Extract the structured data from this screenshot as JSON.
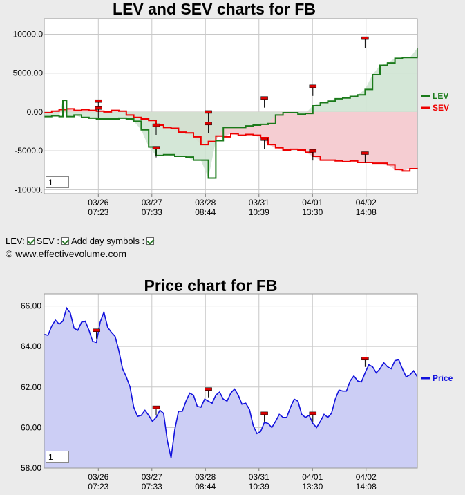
{
  "top_chart_title": "LEV and SEV charts for FB",
  "price_chart_title": "Price chart for FB",
  "controls": {
    "lev_label": "LEV:",
    "sev_label": "SEV :",
    "day_symbols_label": "Add day symbols :"
  },
  "credit": "© www.effectivevolume.com",
  "zoom_value_top": "1",
  "zoom_value_bottom": "1",
  "colors": {
    "lev": "#1a7a1a",
    "lev_fill": "#cde3d0",
    "sev": "#ee0000",
    "sev_fill": "#f5cdd2",
    "overlap_fill": "#c9b7ad",
    "price": "#1111dd",
    "price_fill": "#cccef5",
    "marker": "#dd0000"
  },
  "chart_data": [
    {
      "type": "line",
      "title": "LEV and SEV charts for FB",
      "ytick_labels": [
        "10000.0",
        "5000.00",
        "0.00",
        "-5000.0",
        "-10000."
      ],
      "ylim": [
        -10500,
        12000
      ],
      "x_labels": [
        {
          "date": "03/26",
          "time": "07:23"
        },
        {
          "date": "03/27",
          "time": "07:33"
        },
        {
          "date": "03/28",
          "time": "08:44"
        },
        {
          "date": "03/31",
          "time": "10:39"
        },
        {
          "date": "04/01",
          "time": "13:30"
        },
        {
          "date": "04/02",
          "time": "14:08"
        }
      ],
      "grid": true,
      "legend_position": "right",
      "series": [
        {
          "name": "LEV",
          "x": [
            0,
            2,
            4,
            5,
            6,
            8,
            10,
            12,
            14,
            16,
            18,
            20,
            22,
            24,
            26,
            28,
            30,
            32,
            35,
            38,
            40,
            42,
            44,
            46,
            48,
            50,
            52,
            54,
            56,
            58,
            60,
            62,
            64,
            66,
            68,
            70,
            72,
            74,
            76,
            78,
            80,
            82,
            84,
            86,
            88,
            90,
            92,
            94,
            96,
            98,
            100
          ],
          "values": [
            -600,
            -500,
            -600,
            1500,
            -600,
            -400,
            -700,
            -800,
            -900,
            -900,
            -900,
            -800,
            -900,
            -1200,
            -2300,
            -4500,
            -5600,
            -5500,
            -5700,
            -5800,
            -6200,
            -6200,
            -8500,
            -3700,
            -2000,
            -2000,
            -2000,
            -1800,
            -1700,
            -1600,
            -1500,
            -400,
            -100,
            -100,
            -300,
            -200,
            800,
            1200,
            1400,
            1700,
            1800,
            2000,
            2200,
            2900,
            4800,
            6000,
            6300,
            6900,
            7000,
            7000,
            8200
          ]
        },
        {
          "name": "SEV",
          "x": [
            0,
            2,
            4,
            6,
            8,
            10,
            12,
            14,
            16,
            18,
            20,
            22,
            24,
            26,
            28,
            30,
            32,
            34,
            36,
            38,
            40,
            42,
            44,
            46,
            48,
            50,
            52,
            54,
            56,
            58,
            60,
            62,
            64,
            66,
            68,
            70,
            72,
            74,
            76,
            78,
            80,
            82,
            84,
            86,
            88,
            90,
            92,
            94,
            96,
            98,
            100
          ],
          "values": [
            -100,
            100,
            300,
            400,
            200,
            300,
            200,
            100,
            0,
            200,
            100,
            -400,
            -700,
            -900,
            -1100,
            -1700,
            -2000,
            -2100,
            -2600,
            -2700,
            -3200,
            -4200,
            -3800,
            -3100,
            -3200,
            -2800,
            -3000,
            -2900,
            -3000,
            -3300,
            -4200,
            -4600,
            -4900,
            -4800,
            -4900,
            -5200,
            -5700,
            -6200,
            -6200,
            -6300,
            -6400,
            -6300,
            -6500,
            -6500,
            -6600,
            -6600,
            -6800,
            -7400,
            -7600,
            -7300,
            -7200
          ]
        }
      ]
    },
    {
      "type": "area",
      "title": "Price chart for FB",
      "ytick_labels": [
        "66.00",
        "64.00",
        "62.00",
        "60.00",
        "58.00"
      ],
      "ylim": [
        58,
        66.6
      ],
      "x_labels": [
        {
          "date": "03/26",
          "time": "07:23"
        },
        {
          "date": "03/27",
          "time": "07:33"
        },
        {
          "date": "03/28",
          "time": "08:44"
        },
        {
          "date": "03/31",
          "time": "10:39"
        },
        {
          "date": "04/01",
          "time": "13:30"
        },
        {
          "date": "04/02",
          "time": "14:08"
        }
      ],
      "grid": true,
      "legend_position": "right",
      "series": [
        {
          "name": "Price",
          "x": [
            0,
            2,
            4,
            6,
            8,
            10,
            12,
            14,
            16,
            18,
            20,
            22,
            24,
            26,
            28,
            30,
            32,
            34,
            36,
            38,
            40,
            42,
            44,
            46,
            48,
            50,
            52,
            54,
            56,
            58,
            60,
            62,
            64,
            66,
            68,
            70,
            72,
            74,
            76,
            78,
            80,
            82,
            84,
            86,
            88,
            90,
            92,
            94,
            96,
            98,
            100
          ],
          "values": [
            64.6,
            65,
            65.1,
            65.9,
            64.9,
            65.2,
            64.8,
            64.2,
            65.7,
            64.7,
            63.8,
            62.5,
            61.0,
            60.6,
            60.6,
            60.5,
            60.7,
            58.5,
            60.8,
            61.3,
            61.6,
            61.0,
            61.3,
            61.6,
            61.4,
            61.7,
            61.6,
            61.2,
            60.1,
            59.8,
            60.2,
            60.3,
            60.5,
            61.0,
            61.3,
            60.5,
            60.2,
            60.3,
            60.5,
            61.4,
            61.8,
            62.3,
            62.3,
            62.7,
            63.0,
            62.9,
            63.0,
            63.3,
            62.9,
            62.6,
            62.5
          ]
        }
      ]
    }
  ]
}
